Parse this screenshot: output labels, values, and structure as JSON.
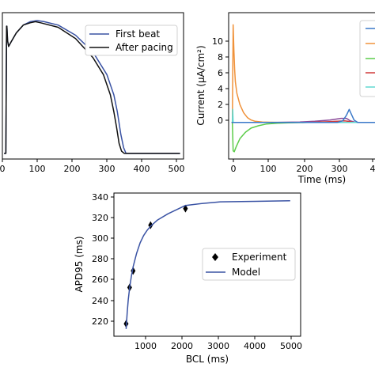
{
  "colors": {
    "blue": "#3a53a4",
    "black": "#111111",
    "orange": "#f0923a",
    "green": "#5ccc4a",
    "purple": "#8a4a9a",
    "red": "#d03a3a",
    "cyan": "#60d8d0"
  },
  "chart_data": [
    {
      "type": "line",
      "title": "",
      "xlabel": "",
      "ylabel": "",
      "xlim": [
        -10,
        510
      ],
      "ylim": [
        -90,
        40
      ],
      "x_ticks": [
        "0",
        "100",
        "200",
        "300",
        "400",
        "500"
      ],
      "legend": {
        "placement": "top-right"
      },
      "series": [
        {
          "name": "First beat",
          "color": "#3a53a4",
          "x": [
            -5,
            0,
            2,
            3,
            5,
            8,
            15,
            30,
            50,
            70,
            90,
            110,
            150,
            200,
            250,
            290,
            310,
            320,
            330,
            338,
            345,
            350,
            400,
            500
          ],
          "y": [
            -85,
            -85,
            28,
            28,
            15,
            10,
            14,
            22,
            29,
            32,
            33,
            32,
            29,
            20,
            5,
            -15,
            -33,
            -48,
            -68,
            -80,
            -85,
            -85,
            -85,
            -85
          ]
        },
        {
          "name": "After pacing",
          "color": "#111111",
          "x": [
            -5,
            0,
            2,
            3,
            5,
            8,
            15,
            30,
            50,
            70,
            85,
            100,
            150,
            200,
            250,
            280,
            300,
            310,
            318,
            325,
            332,
            340,
            400,
            500
          ],
          "y": [
            -85,
            -85,
            28,
            28,
            15,
            10,
            14,
            22,
            29,
            31,
            32,
            31,
            27,
            17,
            0,
            -15,
            -33,
            -48,
            -62,
            -76,
            -83,
            -85,
            -85,
            -85
          ]
        }
      ]
    },
    {
      "type": "line",
      "title": "",
      "xlabel": "Time (ms)",
      "ylabel": "Current (µA/cm²)",
      "xlim": [
        -10,
        400
      ],
      "ylim": [
        -4.5,
        13.5
      ],
      "x_ticks": [
        "0",
        "100",
        "200",
        "300",
        "4"
      ],
      "y_ticks": [
        "0",
        "2",
        "4",
        "6",
        "8",
        "10"
      ],
      "series": [
        {
          "name": "",
          "color": "#f0923a",
          "x": [
            -2,
            0,
            2,
            4,
            6,
            8,
            12,
            20,
            30,
            40,
            50,
            60,
            80,
            120,
            200,
            400
          ],
          "y": [
            0,
            0,
            12,
            9,
            6.5,
            5,
            3.6,
            2.2,
            1.2,
            0.6,
            0.3,
            0.15,
            0.05,
            0,
            0,
            0
          ]
        },
        {
          "name": "",
          "color": "#5ccc4a",
          "x": [
            -2,
            0,
            2,
            5,
            10,
            20,
            35,
            50,
            70,
            90,
            120,
            150,
            200,
            280,
            400
          ],
          "y": [
            0,
            0,
            -3.5,
            -3.6,
            -3,
            -2,
            -1.2,
            -0.7,
            -0.4,
            -0.2,
            -0.1,
            -0.05,
            0,
            0,
            0
          ]
        },
        {
          "name": "",
          "color": "#8a4a9a",
          "x": [
            -2,
            100,
            180,
            220,
            260,
            290,
            305,
            315,
            330,
            400
          ],
          "y": [
            0,
            0,
            0.05,
            0.15,
            0.3,
            0.5,
            0.5,
            0.2,
            0,
            0
          ]
        },
        {
          "name": "",
          "color": "#d03a3a",
          "x": [
            -2,
            100,
            200,
            260,
            300,
            315,
            325,
            400
          ],
          "y": [
            0,
            0,
            0,
            0.1,
            0.2,
            0.1,
            0,
            0
          ]
        },
        {
          "name": "",
          "color": "#60d8d0",
          "x": [
            -2,
            0,
            1,
            2,
            400
          ],
          "y": [
            0,
            0,
            1.6,
            0,
            0
          ]
        },
        {
          "name": "",
          "color": "#3a78c8",
          "x": [
            -2,
            280,
            295,
            305,
            312,
            318,
            325,
            335,
            400
          ],
          "y": [
            0,
            0,
            0.2,
            0.9,
            1.6,
            1.0,
            0.3,
            0,
            0
          ]
        }
      ]
    },
    {
      "type": "scatter",
      "title": "",
      "xlabel": "BCL (ms)",
      "ylabel": "APD95 (ms)",
      "xlim": [
        -50,
        5300
      ],
      "ylim": [
        205,
        343
      ],
      "x_ticks": [
        "1000",
        "2000",
        "3000",
        "4000",
        "5000"
      ],
      "y_ticks": [
        "220",
        "240",
        "260",
        "280",
        "300",
        "320",
        "340"
      ],
      "legend": {
        "placement": "center-right"
      },
      "series": [
        {
          "name": "Experiment",
          "color": "#000000",
          "x": [
            300,
            400,
            500,
            1000,
            2000
          ],
          "y": [
            217,
            252,
            268,
            312,
            328
          ]
        },
        {
          "name": "Model",
          "color": "#3a53a4",
          "x": [
            300,
            330,
            360,
            400,
            450,
            500,
            600,
            700,
            800,
            900,
            1000,
            1200,
            1500,
            2000,
            2500,
            3000,
            4000,
            5000
          ],
          "y": [
            212,
            228,
            240,
            252,
            263,
            272,
            285,
            295,
            302,
            307,
            311,
            317,
            323,
            331,
            333,
            334.5,
            335,
            335.5
          ]
        }
      ]
    }
  ]
}
